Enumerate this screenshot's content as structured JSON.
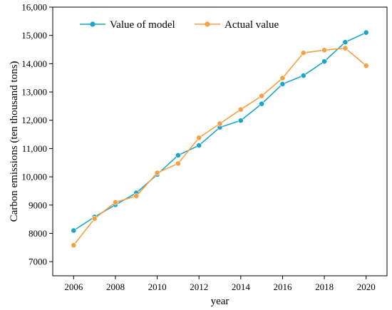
{
  "chart_data": {
    "type": "line",
    "xlabel": "year",
    "ylabel": "Carbon emissions (ten thousand tons)",
    "x": [
      2006,
      2007,
      2008,
      2009,
      2010,
      2011,
      2012,
      2013,
      2014,
      2015,
      2016,
      2017,
      2018,
      2019,
      2020
    ],
    "xlim": [
      2005,
      2021
    ],
    "ylim": [
      6500,
      16000
    ],
    "xticks": [
      "2006",
      "2008",
      "2010",
      "2012",
      "2014",
      "2016",
      "2018",
      "2020"
    ],
    "yticks": [
      "7000",
      "8000",
      "9000",
      "10,000",
      "11,000",
      "12,000",
      "13,000",
      "14,000",
      "15,000",
      "16,000"
    ],
    "grid": false,
    "legend_position": "top-left",
    "series": [
      {
        "name": "Value of model",
        "color": "#1aa5c9",
        "values": [
          8100,
          8580,
          9010,
          9430,
          10080,
          10760,
          11110,
          11750,
          11990,
          12580,
          13280,
          13580,
          14080,
          14760,
          15100
        ]
      },
      {
        "name": "Actual value",
        "color": "#f5a042",
        "values": [
          7580,
          8520,
          9100,
          9320,
          10140,
          10470,
          11380,
          11880,
          12380,
          12860,
          13490,
          14380,
          14480,
          14550,
          13930
        ]
      }
    ]
  }
}
